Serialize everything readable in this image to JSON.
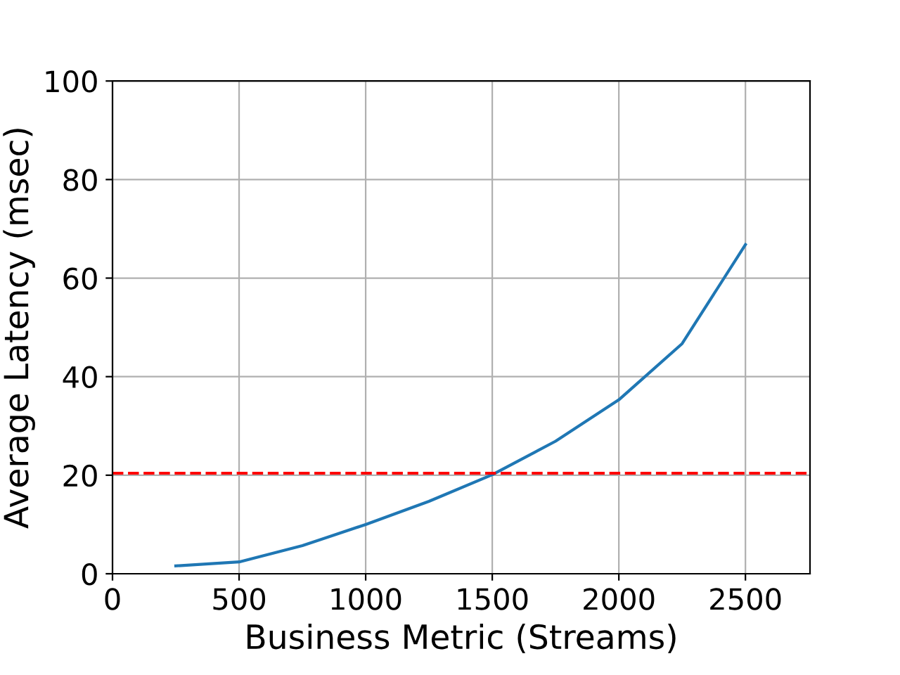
{
  "chart_data": {
    "type": "line",
    "xlabel": "Business Metric (Streams)",
    "ylabel": "Average Latency (msec)",
    "x": [
      250,
      500,
      750,
      1000,
      1250,
      1500,
      1750,
      2000,
      2250,
      2500
    ],
    "series": [
      {
        "color": "#1f77b4",
        "values": [
          1.6,
          2.4,
          5.7,
          10.0,
          14.7,
          20.1,
          26.9,
          35.3,
          46.7,
          66.8
        ]
      }
    ],
    "xlim": [
      0,
      2755
    ],
    "xticks": [
      0,
      500,
      1000,
      1500,
      2000,
      2500
    ],
    "ylim": [
      0,
      100
    ],
    "yticks": [
      0,
      20,
      40,
      60,
      80,
      100
    ],
    "ref_lines": [
      {
        "axis": "y",
        "value": 20.4,
        "color": "#ff0000",
        "line_style": "dashed"
      }
    ],
    "grid": true,
    "marker": "none",
    "line_style": "solid"
  }
}
